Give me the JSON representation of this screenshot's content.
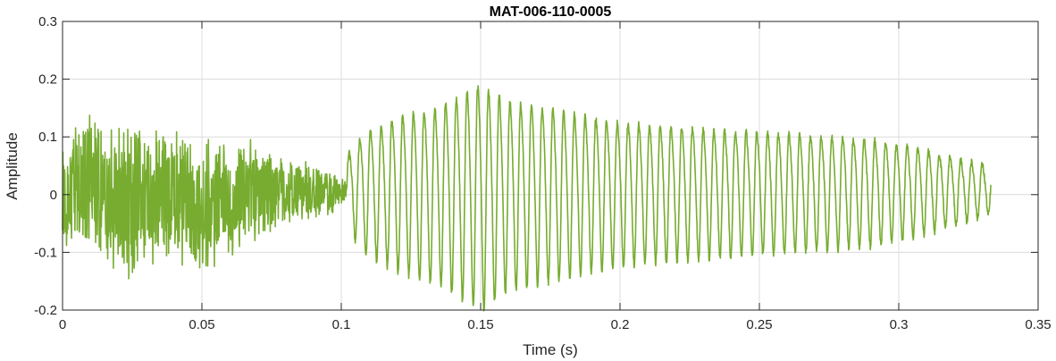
{
  "chart_data": {
    "type": "line",
    "title": "MAT-006-110-0005",
    "xlabel": "Time (s)",
    "ylabel": "Amplitude",
    "xlim": [
      0,
      0.35
    ],
    "ylim": [
      -0.2,
      0.3
    ],
    "grid": true,
    "x_ticks": [
      "0",
      "0.05",
      "0.1",
      "0.15",
      "0.2",
      "0.25",
      "0.3",
      "0.35"
    ],
    "y_ticks": [
      "-0.2",
      "-0.1",
      "0",
      "0.1",
      "0.2",
      "0.3"
    ],
    "series": [
      {
        "color": "#77ac30",
        "x_range": [
          0,
          0.333
        ],
        "envelope": [
          {
            "x": 0.0,
            "min": -0.1,
            "max": 0.09
          },
          {
            "x": 0.008,
            "min": -0.12,
            "max": 0.16
          },
          {
            "x": 0.015,
            "min": -0.13,
            "max": 0.12
          },
          {
            "x": 0.025,
            "min": -0.16,
            "max": 0.13
          },
          {
            "x": 0.035,
            "min": -0.13,
            "max": 0.12
          },
          {
            "x": 0.043,
            "min": -0.13,
            "max": 0.14
          },
          {
            "x": 0.05,
            "min": -0.16,
            "max": 0.1
          },
          {
            "x": 0.058,
            "min": -0.12,
            "max": 0.1
          },
          {
            "x": 0.065,
            "min": -0.1,
            "max": 0.11
          },
          {
            "x": 0.072,
            "min": -0.09,
            "max": 0.09
          },
          {
            "x": 0.08,
            "min": -0.06,
            "max": 0.07
          },
          {
            "x": 0.088,
            "min": -0.05,
            "max": 0.06
          },
          {
            "x": 0.095,
            "min": -0.04,
            "max": 0.05
          },
          {
            "x": 0.1,
            "min": -0.02,
            "max": 0.03
          }
        ],
        "oscillation": {
          "start": 0.102,
          "end": 0.333,
          "period": 0.00385,
          "offset": 0.01,
          "amplitude": [
            {
              "x": 0.102,
              "value": 0.06
            },
            {
              "x": 0.108,
              "value": 0.1
            },
            {
              "x": 0.12,
              "value": 0.13
            },
            {
              "x": 0.135,
              "value": 0.15
            },
            {
              "x": 0.15,
              "value": 0.19
            },
            {
              "x": 0.16,
              "value": 0.16
            },
            {
              "x": 0.18,
              "value": 0.14
            },
            {
              "x": 0.2,
              "value": 0.12
            },
            {
              "x": 0.23,
              "value": 0.11
            },
            {
              "x": 0.26,
              "value": 0.1
            },
            {
              "x": 0.29,
              "value": 0.09
            },
            {
              "x": 0.31,
              "value": 0.07
            },
            {
              "x": 0.325,
              "value": 0.05
            },
            {
              "x": 0.333,
              "value": 0.04
            }
          ]
        }
      }
    ]
  }
}
